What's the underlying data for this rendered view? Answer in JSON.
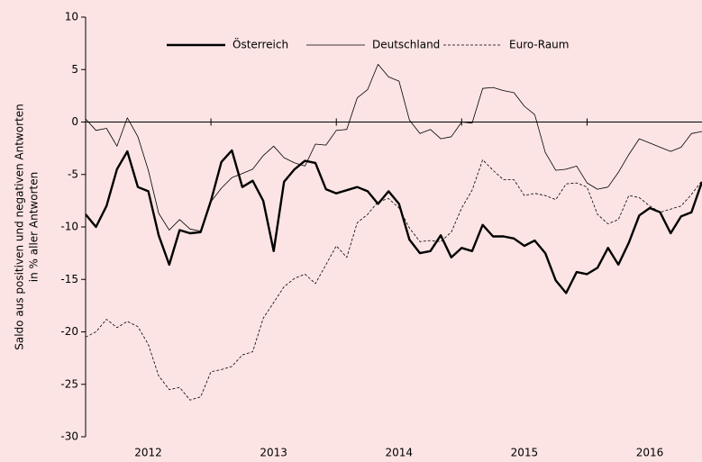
{
  "chart_data": {
    "type": "line",
    "ylabel": [
      "Saldo aus positiven und negativen Antworten",
      "in % aller Antworten"
    ],
    "x": [
      2012,
      2012.083,
      2012.167,
      2012.25,
      2012.333,
      2012.417,
      2012.5,
      2012.583,
      2012.667,
      2012.75,
      2012.833,
      2012.917,
      2013,
      2013.083,
      2013.167,
      2013.25,
      2013.333,
      2013.417,
      2013.5,
      2013.583,
      2013.667,
      2013.75,
      2013.833,
      2013.917,
      2014,
      2014.083,
      2014.167,
      2014.25,
      2014.333,
      2014.417,
      2014.5,
      2014.583,
      2014.667,
      2014.75,
      2014.833,
      2014.917,
      2015,
      2015.083,
      2015.167,
      2015.25,
      2015.333,
      2015.417,
      2015.5,
      2015.583,
      2015.667,
      2015.75,
      2015.833,
      2015.917,
      2016,
      2016.083,
      2016.167,
      2016.25,
      2016.333,
      2016.417,
      2016.5,
      2016.583,
      2016.667,
      2016.75,
      2016.833,
      2016.917
    ],
    "series": [
      {
        "name": "Österreich",
        "color": "#000000",
        "width": 2.4,
        "dash": "none",
        "values": [
          -8.8,
          -10.0,
          -8.0,
          -4.5,
          -2.8,
          -6.2,
          -6.6,
          -10.8,
          -13.6,
          -10.3,
          -10.6,
          -10.5,
          -7.5,
          -3.8,
          -2.7,
          -6.2,
          -5.6,
          -7.5,
          -12.3,
          -5.7,
          -4.5,
          -3.7,
          -3.9,
          -6.4,
          -6.8,
          -6.5,
          -6.2,
          -6.6,
          -7.8,
          -6.6,
          -7.8,
          -11.2,
          -12.5,
          -12.3,
          -10.8,
          -12.9,
          -12.0,
          -12.3,
          -9.8,
          -10.9,
          -10.9,
          -11.1,
          -11.8,
          -11.3,
          -12.5,
          -15.1,
          -16.3,
          -14.3,
          -14.5,
          -13.9,
          -12.0,
          -13.6,
          -11.5,
          -8.9,
          -8.2,
          -8.6,
          -10.6,
          -9.0,
          -8.6,
          -5.7
        ]
      },
      {
        "name": "Deutschland",
        "color": "#000000",
        "width": 0.8,
        "dash": "none",
        "values": [
          0.3,
          -0.8,
          -0.6,
          -2.3,
          0.4,
          -1.4,
          -4.6,
          -8.7,
          -10.3,
          -9.3,
          -10.2,
          -10.4,
          -7.6,
          -6.3,
          -5.3,
          -4.9,
          -4.5,
          -3.2,
          -2.3,
          -3.4,
          -3.9,
          -4.2,
          -2.1,
          -2.2,
          -0.8,
          -0.7,
          2.3,
          3.1,
          5.5,
          4.3,
          3.9,
          0.2,
          -1.1,
          -0.7,
          -1.6,
          -1.4,
          0.0,
          -0.1,
          3.2,
          3.3,
          3.0,
          2.8,
          1.5,
          0.7,
          -2.9,
          -4.6,
          -4.5,
          -4.2,
          -5.8,
          -6.4,
          -6.2,
          -4.8,
          -3.1,
          -1.6,
          -2.0,
          -2.4,
          -2.8,
          -2.4,
          -1.1,
          -0.9
        ]
      },
      {
        "name": "Euro-Raum",
        "color": "#000000",
        "width": 0.8,
        "dash": "3,2",
        "values": [
          -20.5,
          -20.0,
          -18.8,
          -19.6,
          -19.0,
          -19.5,
          -21.2,
          -24.2,
          -25.5,
          -25.3,
          -26.5,
          -26.2,
          -23.8,
          -23.6,
          -23.3,
          -22.2,
          -21.9,
          -18.7,
          -17.2,
          -15.7,
          -14.9,
          -14.5,
          -15.4,
          -13.6,
          -11.8,
          -12.9,
          -9.6,
          -8.8,
          -7.6,
          -7.3,
          -8.2,
          -10.1,
          -11.4,
          -11.3,
          -11.4,
          -10.5,
          -8.2,
          -6.5,
          -3.6,
          -4.6,
          -5.5,
          -5.5,
          -7.0,
          -6.8,
          -7.0,
          -7.4,
          -5.9,
          -5.8,
          -6.2,
          -8.8,
          -9.7,
          -9.3,
          -7.0,
          -7.2,
          -8.0,
          -8.6,
          -8.3,
          -8.0,
          -6.9,
          -5.6
        ]
      }
    ],
    "xlim": [
      2012,
      2016.917
    ],
    "xticks": [
      {
        "value": 2012.5,
        "label": "2012"
      },
      {
        "value": 2013.5,
        "label": "2013"
      },
      {
        "value": 2014.5,
        "label": "2014"
      },
      {
        "value": 2015.5,
        "label": "2015"
      },
      {
        "value": 2016.5,
        "label": "2016"
      }
    ],
    "xtick_marks": [
      2013,
      2014,
      2015,
      2016
    ],
    "x_axis_at": 0,
    "ylim": [
      -30,
      10
    ],
    "yticks": [
      -30,
      -25,
      -20,
      -15,
      -10,
      -5,
      0,
      5,
      10
    ],
    "legend": "top"
  }
}
